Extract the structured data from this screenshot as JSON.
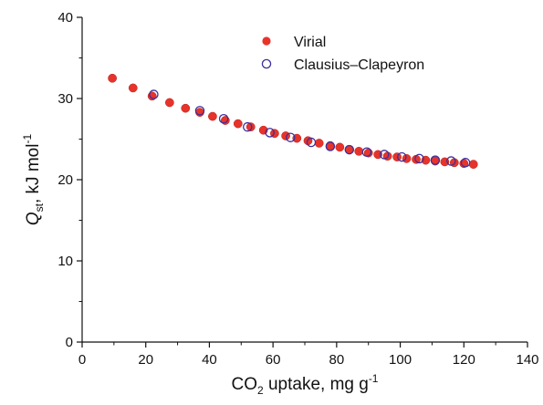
{
  "chart_data": {
    "type": "scatter",
    "x_label": {
      "main": "CO",
      "sub": "2",
      "rest": " uptake, mg g",
      "sup": "-1"
    },
    "y_label": {
      "main": "Q",
      "sub": "st",
      "rest": ", kJ mol",
      "sup": "-1"
    },
    "xlim": [
      0,
      140
    ],
    "ylim": [
      0,
      40
    ],
    "x_ticks": [
      "0",
      "20",
      "40",
      "60",
      "80",
      "100",
      "120",
      "140"
    ],
    "y_ticks": [
      "0",
      "10",
      "20",
      "30",
      "40"
    ],
    "legend_position": "top-center",
    "series": [
      {
        "name": "Virial",
        "marker": "filled-circle",
        "color": "#e8332a",
        "points": [
          [
            9.5,
            32.5
          ],
          [
            16,
            31.3
          ],
          [
            22,
            30.3
          ],
          [
            27.5,
            29.5
          ],
          [
            32.5,
            28.8
          ],
          [
            37,
            28.3
          ],
          [
            41,
            27.8
          ],
          [
            45,
            27.3
          ],
          [
            49,
            26.9
          ],
          [
            53,
            26.5
          ],
          [
            57,
            26.1
          ],
          [
            60.5,
            25.7
          ],
          [
            64,
            25.4
          ],
          [
            67.5,
            25.1
          ],
          [
            71,
            24.8
          ],
          [
            74.5,
            24.5
          ],
          [
            78,
            24.2
          ],
          [
            81,
            24.0
          ],
          [
            84,
            23.7
          ],
          [
            87,
            23.5
          ],
          [
            90,
            23.3
          ],
          [
            93,
            23.1
          ],
          [
            96,
            22.9
          ],
          [
            99,
            22.8
          ],
          [
            102,
            22.6
          ],
          [
            105,
            22.5
          ],
          [
            108,
            22.4
          ],
          [
            111,
            22.3
          ],
          [
            114,
            22.2
          ],
          [
            117,
            22.1
          ],
          [
            120,
            22.0
          ],
          [
            123,
            21.9
          ]
        ]
      },
      {
        "name": "Clausius–Clapeyron",
        "marker": "open-circle",
        "color": "#3a2f9e",
        "points": [
          [
            22.5,
            30.5
          ],
          [
            37,
            28.5
          ],
          [
            44.5,
            27.5
          ],
          [
            52,
            26.5
          ],
          [
            59,
            25.8
          ],
          [
            65.5,
            25.2
          ],
          [
            72,
            24.6
          ],
          [
            78,
            24.1
          ],
          [
            84,
            23.7
          ],
          [
            89.5,
            23.4
          ],
          [
            95,
            23.1
          ],
          [
            100.5,
            22.8
          ],
          [
            106,
            22.6
          ],
          [
            111,
            22.4
          ],
          [
            116,
            22.3
          ],
          [
            120.5,
            22.1
          ]
        ]
      }
    ]
  }
}
